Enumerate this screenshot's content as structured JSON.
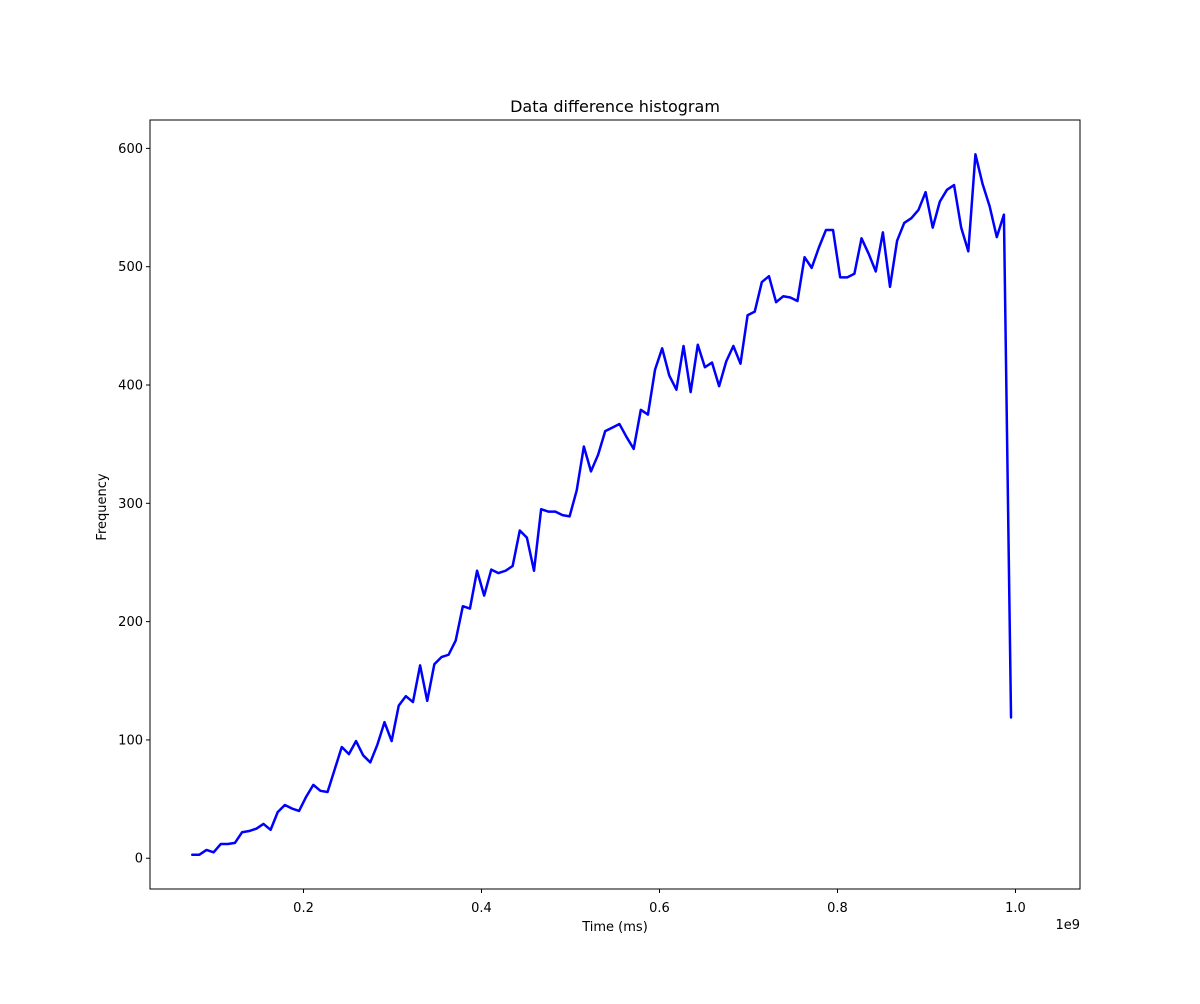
{
  "chart_data": {
    "type": "line",
    "title": "Data difference histogram",
    "xlabel": "Time (ms)",
    "ylabel": "Frequency",
    "x_scale_label": "1e9",
    "x_scale_factor": 1000000000,
    "xlim": [
      27500000,
      1072500000
    ],
    "ylim": [
      -26,
      624
    ],
    "x_ticks": [
      200000000,
      400000000,
      600000000,
      800000000,
      1000000000
    ],
    "x_tick_labels": [
      "0.2",
      "0.4",
      "0.6",
      "0.8",
      "1.0"
    ],
    "y_ticks": [
      0,
      100,
      200,
      300,
      400,
      500,
      600
    ],
    "y_tick_labels": [
      "0",
      "100",
      "200",
      "300",
      "400",
      "500",
      "600"
    ],
    "grid": false,
    "series": [
      {
        "color": "#0000ff",
        "x": [
          75000000,
          83000000,
          91000000,
          99000000,
          107000000,
          115000000,
          123000000,
          131000000,
          139000000,
          147000000,
          155000000,
          163000000,
          171000000,
          179000000,
          187000000,
          195000000,
          203000000,
          211000000,
          219000000,
          227000000,
          235000000,
          243000000,
          251000000,
          259000000,
          267000000,
          275000000,
          283000000,
          291000000,
          299000000,
          307000000,
          315000000,
          323000000,
          331000000,
          339000000,
          347000000,
          355000000,
          363000000,
          371000000,
          379000000,
          387000000,
          395000000,
          403000000,
          411000000,
          419000000,
          427000000,
          435000000,
          443000000,
          451000000,
          459000000,
          467000000,
          475000000,
          483000000,
          491000000,
          499000000,
          507000000,
          515000000,
          523000000,
          531000000,
          539000000,
          547000000,
          555000000,
          563000000,
          571000000,
          579000000,
          587000000,
          595000000,
          603000000,
          611000000,
          619000000,
          627000000,
          635000000,
          643000000,
          651000000,
          659000000,
          667000000,
          675000000,
          683000000,
          691000000,
          699000000,
          707000000,
          715000000,
          723000000,
          731000000,
          739000000,
          747000000,
          755000000,
          763000000,
          771000000,
          779000000,
          787000000,
          795000000,
          803000000,
          811000000,
          819000000,
          827000000,
          835000000,
          843000000,
          851000000,
          859000000,
          867000000,
          875000000,
          883000000,
          891000000,
          899000000,
          907000000,
          915000000,
          923000000,
          931000000,
          939000000,
          947000000,
          955000000,
          963000000,
          971000000,
          979000000,
          987000000,
          995000000
        ],
        "y": [
          3,
          3,
          7,
          5,
          12,
          12,
          13,
          22,
          23,
          25,
          29,
          24,
          39,
          45,
          42,
          40,
          52,
          62,
          57,
          56,
          75,
          94,
          88,
          99,
          87,
          81,
          96,
          115,
          99,
          129,
          137,
          132,
          163,
          133,
          164,
          170,
          172,
          184,
          213,
          211,
          243,
          222,
          244,
          241,
          243,
          247,
          277,
          271,
          243,
          295,
          293,
          293,
          290,
          289,
          311,
          348,
          327,
          341,
          361,
          364,
          367,
          356,
          346,
          379,
          375,
          413,
          431,
          408,
          396,
          433,
          394,
          434,
          415,
          419,
          399,
          420,
          433,
          418,
          459,
          462,
          487,
          492,
          470,
          475,
          474,
          471,
          508,
          499,
          516,
          531,
          531,
          491,
          491,
          494,
          524,
          511,
          496,
          529,
          483,
          522,
          537,
          541,
          548,
          563,
          533,
          555,
          565,
          569,
          533,
          513,
          595,
          570,
          551,
          525,
          544,
          119
        ]
      }
    ]
  }
}
